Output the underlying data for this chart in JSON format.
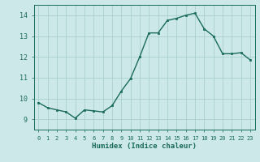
{
  "x": [
    0,
    1,
    2,
    3,
    4,
    5,
    6,
    7,
    8,
    9,
    10,
    11,
    12,
    13,
    14,
    15,
    16,
    17,
    18,
    19,
    20,
    21,
    22,
    23
  ],
  "y": [
    9.8,
    9.55,
    9.45,
    9.35,
    9.05,
    9.45,
    9.4,
    9.35,
    9.65,
    10.35,
    10.95,
    12.0,
    13.15,
    13.15,
    13.75,
    13.85,
    14.0,
    14.1,
    13.35,
    13.0,
    12.15,
    12.15,
    12.2,
    11.85
  ],
  "xlabel": "Humidex (Indice chaleur)",
  "xlim": [
    -0.5,
    23.5
  ],
  "ylim": [
    8.5,
    14.5
  ],
  "yticks": [
    9,
    10,
    11,
    12,
    13,
    14
  ],
  "xticks": [
    0,
    1,
    2,
    3,
    4,
    5,
    6,
    7,
    8,
    9,
    10,
    11,
    12,
    13,
    14,
    15,
    16,
    17,
    18,
    19,
    20,
    21,
    22,
    23
  ],
  "xtick_labels": [
    "0",
    "1",
    "2",
    "3",
    "4",
    "5",
    "6",
    "7",
    "8",
    "9",
    "10",
    "11",
    "12",
    "13",
    "14",
    "15",
    "16",
    "17",
    "18",
    "19",
    "20",
    "21",
    "22",
    "23"
  ],
  "line_color": "#1a6b5a",
  "marker_color": "#1a6b5a",
  "bg_color": "#cce8e8",
  "grid_color": "#aacfcf",
  "label_color": "#1a6b5a",
  "tick_color": "#1a6b5a",
  "spine_color": "#1a6b5a"
}
